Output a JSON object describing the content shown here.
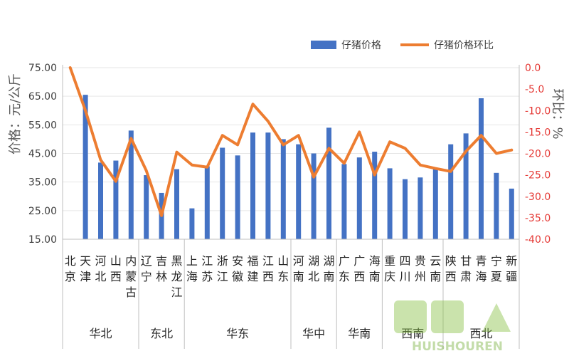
{
  "chart_data": {
    "type": "bar+line",
    "legend": {
      "placement": "top-right"
    },
    "y_left": {
      "label": "价格：元/公斤",
      "ylim": [
        15,
        75
      ],
      "ticks": [
        "75.00",
        "65.00",
        "55.00",
        "45.00",
        "35.00",
        "25.00",
        "15.00"
      ]
    },
    "y_right": {
      "label": "环比：%",
      "ylim": [
        -40,
        0
      ],
      "ticks": [
        "0.0",
        "-5.0",
        "-10.0",
        "-15.0",
        "-20.0",
        "-25.0",
        "-30.0",
        "-35.0",
        "-40.0"
      ]
    },
    "categories": [
      "北京",
      "天津",
      "河北",
      "山西",
      "内蒙古",
      "辽宁",
      "吉林",
      "黑龙江",
      "上海",
      "江苏",
      "浙江",
      "安徽",
      "福建",
      "江西",
      "山东",
      "河南",
      "湖北",
      "湖南",
      "广东",
      "广西",
      "海南",
      "重庆",
      "四川",
      "贵州",
      "云南",
      "陕西",
      "甘肃",
      "青海",
      "宁夏",
      "新疆"
    ],
    "groups": [
      {
        "label": "华北",
        "count": 5
      },
      {
        "label": "东北",
        "count": 3
      },
      {
        "label": "华东",
        "count": 7
      },
      {
        "label": "华中",
        "count": 3
      },
      {
        "label": "华南",
        "count": 3
      },
      {
        "label": "西南",
        "count": 4
      },
      {
        "label": "西北",
        "count": 5
      }
    ],
    "series": [
      {
        "name": "仔猪价格",
        "type": "bar",
        "axis": "left",
        "color": "#4472c4",
        "values": [
          null,
          65.5,
          41.8,
          42.5,
          53.0,
          37.4,
          31.2,
          39.5,
          25.8,
          40.5,
          47.0,
          44.3,
          52.3,
          52.3,
          50.0,
          48.2,
          45.0,
          54.0,
          41.3,
          43.6,
          45.6,
          39.8,
          36.0,
          36.6,
          40.0,
          48.2,
          52.0,
          64.3,
          38.2,
          32.7
        ]
      },
      {
        "name": "仔猪价格环比",
        "type": "line",
        "axis": "right",
        "color": "#ed7d31",
        "values": [
          0.0,
          -10.0,
          -21.5,
          -26.5,
          -16.5,
          -24.0,
          -34.5,
          -19.7,
          -22.7,
          -23.2,
          -15.8,
          -18.0,
          -8.5,
          -12.5,
          -18.0,
          -15.8,
          -25.5,
          -18.8,
          -22.3,
          -15.0,
          -25.0,
          -17.3,
          -18.8,
          -22.7,
          -23.5,
          -24.2,
          -19.5,
          -15.8,
          -20.0,
          -19.2
        ]
      }
    ]
  },
  "watermark": {
    "text": "HUISHOUREN"
  }
}
